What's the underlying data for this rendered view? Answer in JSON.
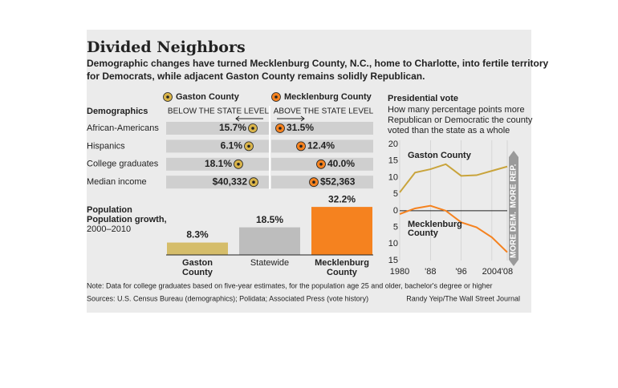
{
  "header": {
    "title": "Divided Neighbors",
    "subtitle": [
      "Demographic changes have turned Mecklenburg County, N.C., home to Charlotte, into fertile territory",
      "for Democrats, while adjacent Gaston County remains solidly Republican."
    ]
  },
  "legend": [
    {
      "name": "Gaston County",
      "color": "#d9b44a"
    },
    {
      "name": "Mecklenburg County",
      "color": "#f5821f"
    }
  ],
  "demographics": {
    "title": "Demographics",
    "below": "BELOW THE STATE LEVEL",
    "above": "ABOVE THE STATE LEVEL",
    "rows": [
      [
        "African-Americans",
        "15.7%",
        "31.5%"
      ],
      [
        "Hispanics",
        "6.1%",
        "12.4%"
      ],
      [
        "College graduates",
        "18.1%",
        "40.0%"
      ],
      [
        "Median income",
        "$40,332",
        "$52,363"
      ]
    ]
  },
  "chart_data": [
    {
      "type": "bar",
      "title": "Population growth,",
      "subtitle": "2000–2010",
      "categories": [
        "Gaston County",
        "Statewide",
        "Mecklenburg County"
      ],
      "values": [
        8.3,
        18.5,
        32.2
      ],
      "value_labels": [
        "8.3%",
        "18.5%",
        "32.2%"
      ],
      "colors": [
        "#d5bd6a",
        "#bdbdbd",
        "#f5821f"
      ]
    },
    {
      "type": "line",
      "title": "Presidential vote",
      "subtitle": [
        "How many percentage points more",
        "Republican or Democratic the county",
        "voted than the state as a whole"
      ],
      "x": [
        1980,
        1984,
        1988,
        1992,
        1996,
        2000,
        2004,
        2008
      ],
      "series": [
        {
          "name": "Gaston County",
          "color": "#c9a43c",
          "values": [
            5.5,
            11.5,
            12.5,
            14,
            10.5,
            10.7,
            12,
            13.3
          ]
        },
        {
          "name": "Mecklenburg County",
          "color": "#f5821f",
          "values": [
            -1,
            0.7,
            1.5,
            0,
            -3.5,
            -5,
            -8,
            -12.5
          ]
        }
      ],
      "xlim": [
        1980,
        2008
      ],
      "xticks": [
        {
          "value": 1980,
          "label": "1980"
        },
        {
          "value": 1988,
          "label": "'88"
        },
        {
          "value": 1996,
          "label": "'96"
        },
        {
          "value": 2004,
          "label": "2004"
        },
        {
          "value": 2008,
          "label": "'08"
        }
      ],
      "ylim": [
        -15,
        20
      ],
      "yticks": [
        20,
        15,
        10,
        5,
        0,
        {
          "value": -5,
          "label": "5"
        },
        {
          "value": -10,
          "label": "10"
        },
        {
          "value": -15,
          "label": "15"
        }
      ],
      "annotations": [
        "MORE REP.",
        "MORE DEM."
      ],
      "grid": true
    }
  ],
  "footer": {
    "note": "Note: Data for college graduates based on five-year estimates, for the population age 25 and older, bachelor's degree or higher",
    "sources": "Sources: U.S. Census Bureau (demographics); Polidata; Associated Press (vote history)",
    "credit": "Randy Yeip/The Wall Street Journal"
  }
}
